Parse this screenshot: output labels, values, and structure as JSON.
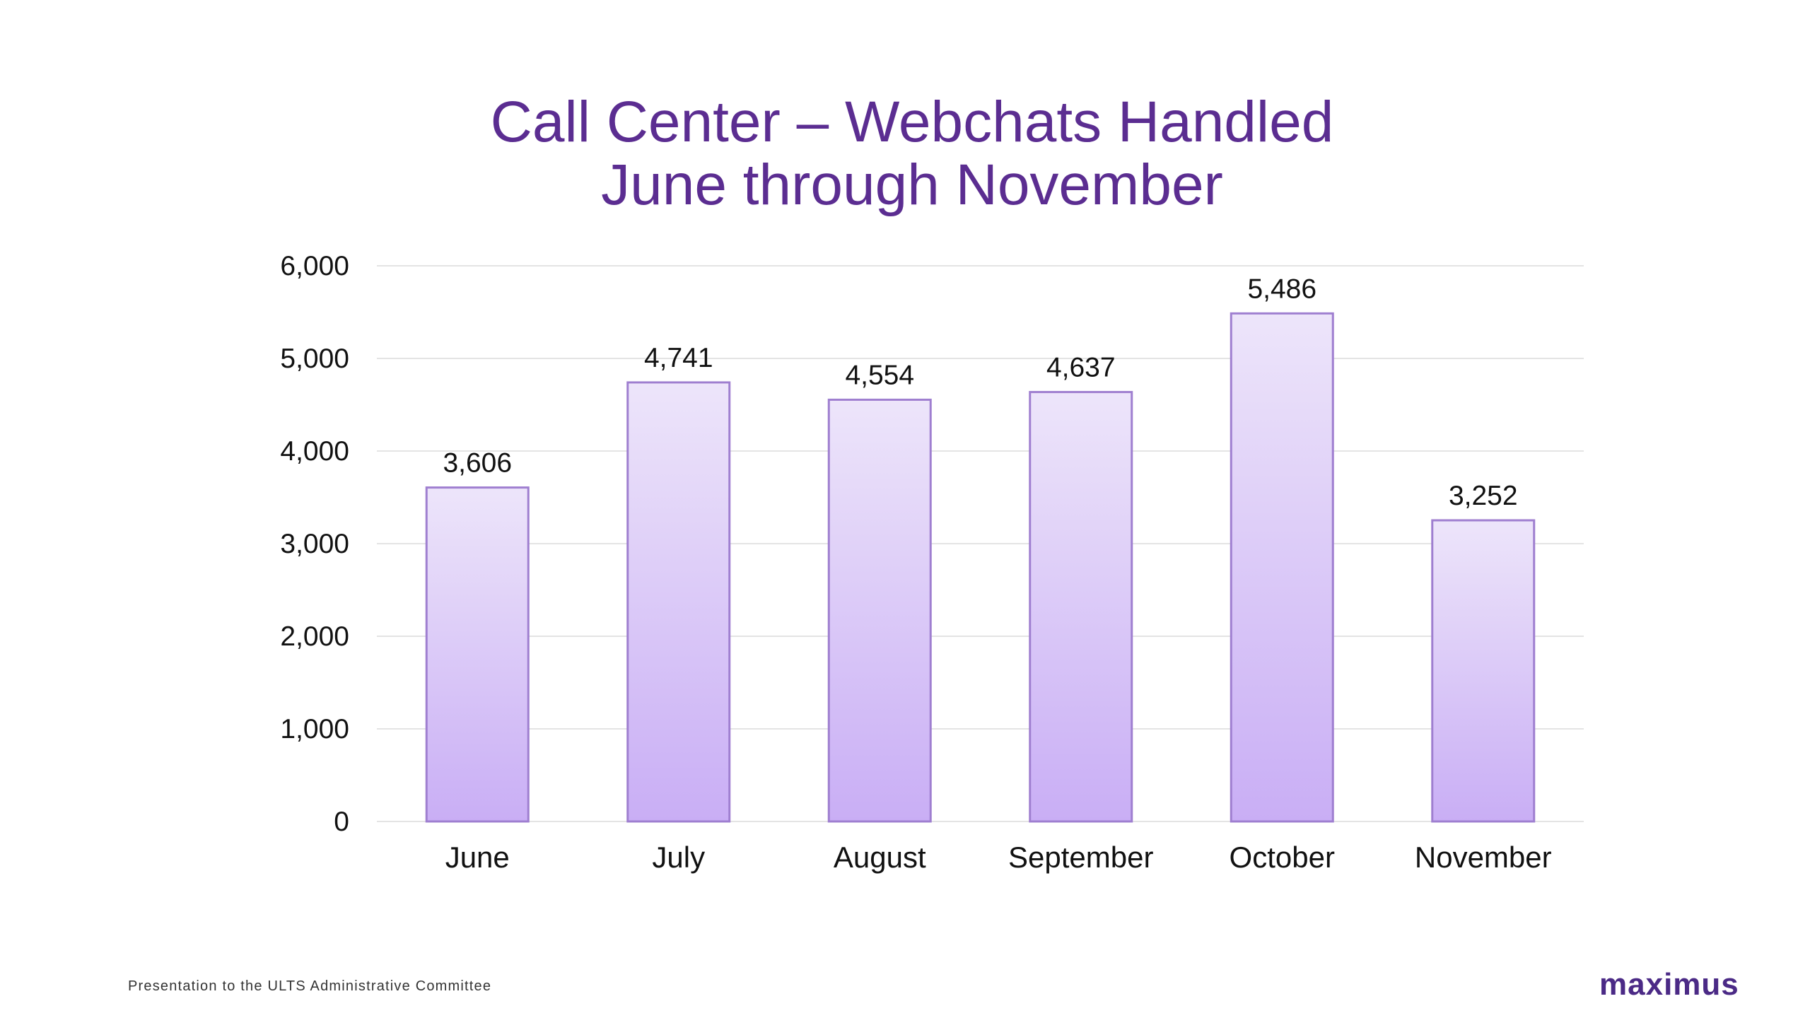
{
  "slide": {
    "title_line1": "Call Center – Webchats Handled",
    "title_line2": "June through November",
    "footer": "Presentation to the ULTS Administrative Committee",
    "logo_text": "maximus",
    "colors": {
      "title": "#5b2d91",
      "bar_top": "#ede5fa",
      "bar_bottom": "#c9aef5",
      "bar_border": "#9f7fd0",
      "gridline": "#e4e4e4",
      "logo": "#4b2a86"
    }
  },
  "chart_data": {
    "type": "bar",
    "title": "Call Center – Webchats Handled June through November",
    "categories": [
      "June",
      "July",
      "August",
      "September",
      "October",
      "November"
    ],
    "values": [
      3606,
      4741,
      4554,
      4637,
      5486,
      3252
    ],
    "value_labels": [
      "3,606",
      "4,741",
      "4,554",
      "4,637",
      "5,486",
      "3,252"
    ],
    "y_ticks": [
      0,
      1000,
      2000,
      3000,
      4000,
      5000,
      6000
    ],
    "y_tick_labels": [
      "0",
      "1,000",
      "2,000",
      "3,000",
      "4,000",
      "5,000",
      "6,000"
    ],
    "ylim": [
      0,
      6000
    ],
    "xlabel": "",
    "ylabel": "",
    "grid": true,
    "legend": "none"
  }
}
